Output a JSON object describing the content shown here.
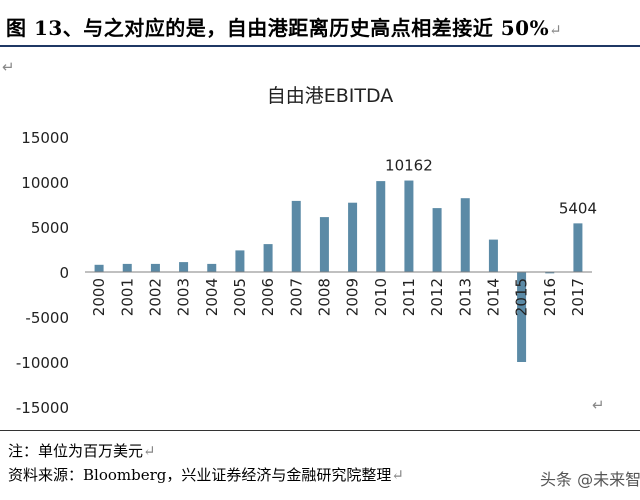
{
  "figure": {
    "caption": "图 13、与之对应的是，自由港距离历史高点相差接近 50%",
    "return_mark": "↵"
  },
  "notes": {
    "unit": "注：单位为百万美元",
    "source": "资料来源：Bloomberg，兴业证券经济与金融研究院整理"
  },
  "watermark": "头条 @未来智库",
  "colors": {
    "bar": "#5b8aa6",
    "axis": "#808080",
    "title_rule": "#1f3864"
  },
  "chart_data": {
    "type": "bar",
    "title": "自由港EBITDA",
    "xlabel": "",
    "ylabel": "",
    "categories": [
      "2000",
      "2001",
      "2002",
      "2003",
      "2004",
      "2005",
      "2006",
      "2007",
      "2008",
      "2009",
      "2010",
      "2011",
      "2012",
      "2013",
      "2014",
      "2015",
      "2016",
      "2017"
    ],
    "values": [
      800,
      900,
      900,
      1100,
      900,
      2400,
      3100,
      7900,
      6100,
      7700,
      10100,
      10162,
      7100,
      8200,
      3600,
      -10000,
      -150,
      5404
    ],
    "data_labels": [
      {
        "index": 11,
        "text": "10162"
      },
      {
        "index": 17,
        "text": "5404"
      }
    ],
    "yticks": [
      15000,
      10000,
      5000,
      0,
      -5000,
      -10000,
      -15000
    ],
    "ylim": [
      -15000,
      15000
    ],
    "grid": false,
    "legend": "none"
  }
}
